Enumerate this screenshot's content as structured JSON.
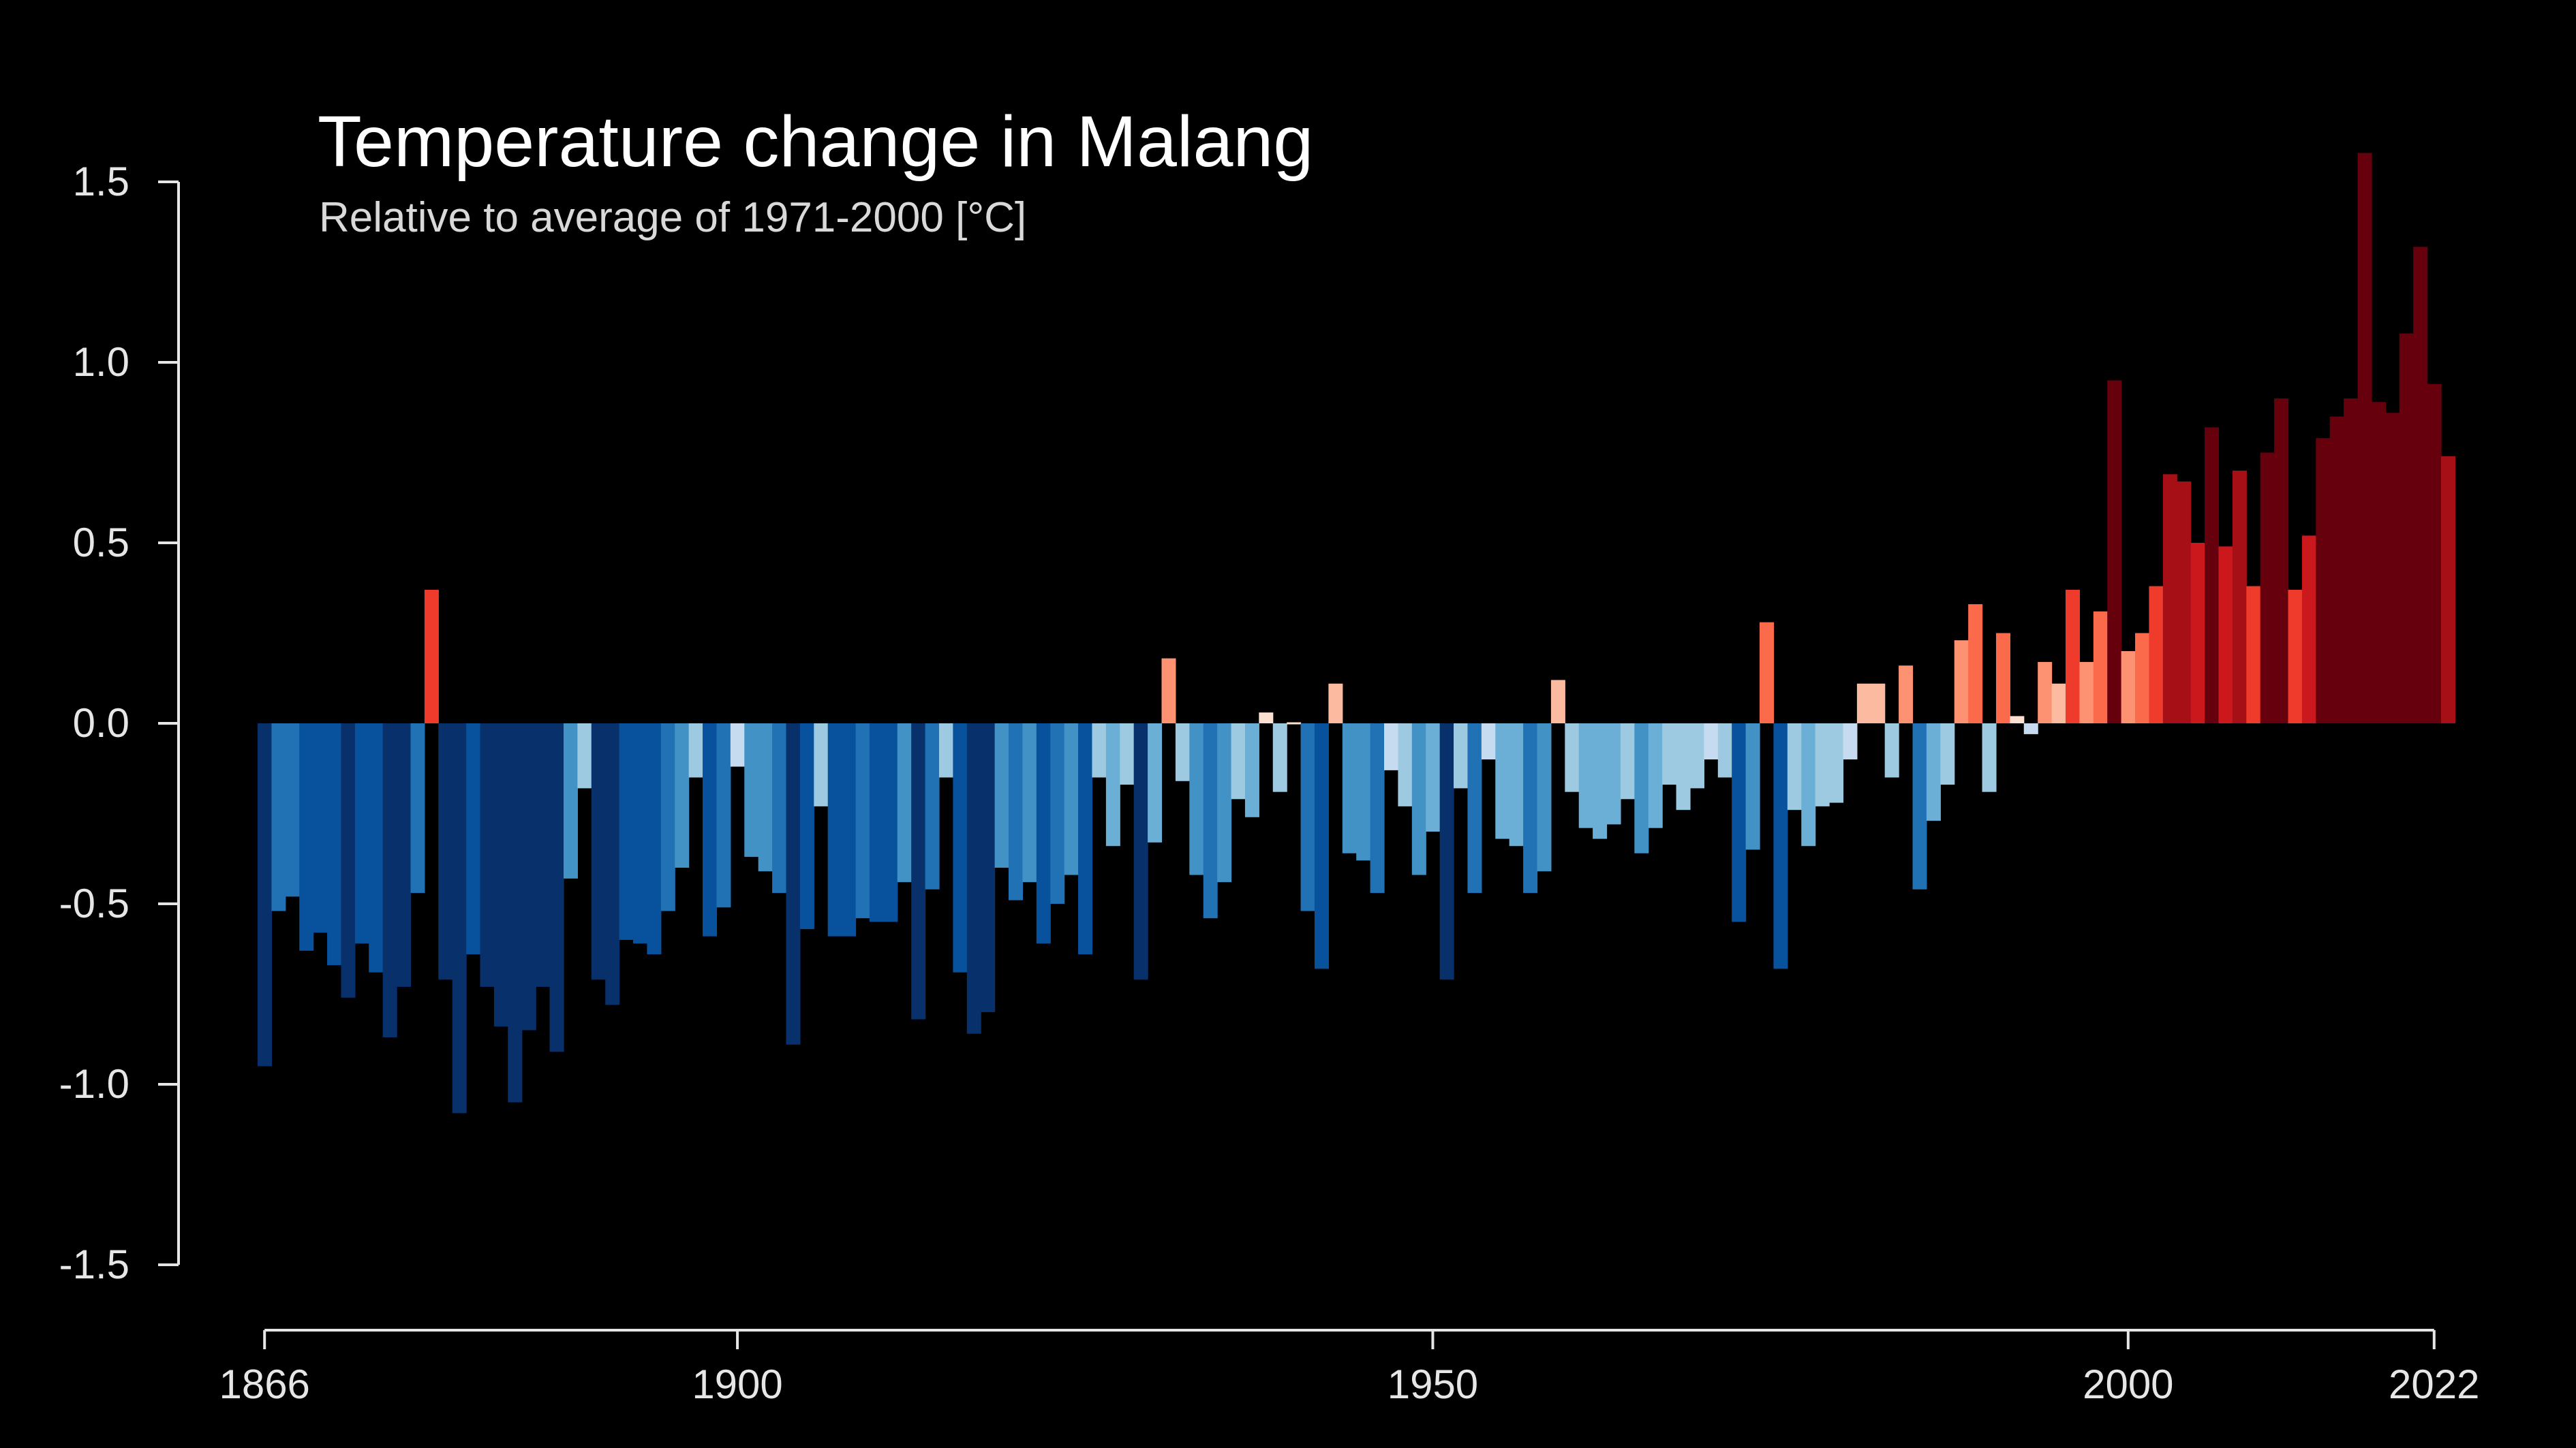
{
  "chart_data": {
    "type": "bar",
    "title": "Temperature change in Malang",
    "subtitle": "Relative to average of 1971-2000  [°C]",
    "xlabel": "",
    "ylabel": "",
    "xlim": [
      1866,
      2022
    ],
    "ylim": [
      -1.5,
      1.5
    ],
    "x_ticks": [
      "1866",
      "1900",
      "1950",
      "2000",
      "2022"
    ],
    "y_ticks": [
      "1.5",
      "1.0",
      "0.5",
      "0.0",
      "-0.5",
      "-1.0",
      "-1.5"
    ],
    "grid": false,
    "legend": "none",
    "color_scale": {
      "negative": [
        "#08306b",
        "#08519c",
        "#2171b5",
        "#4292c6",
        "#6baed6",
        "#9ecae1",
        "#c6dbef"
      ],
      "positive": [
        "#fee0d2",
        "#fcbba1",
        "#fc9272",
        "#fb6a4a",
        "#ef3b2c",
        "#cb181d",
        "#a50f15",
        "#67000d"
      ]
    },
    "series": [
      {
        "start_year": 1866,
        "values": [
          -0.95,
          -0.52,
          -0.48,
          -0.63,
          -0.58,
          -0.67,
          -0.76,
          -0.61,
          -0.69,
          -0.87,
          -0.73,
          -0.47,
          0.37,
          -0.71,
          -1.08,
          -0.64,
          -0.73,
          -0.84,
          -1.05,
          -0.85,
          -0.73,
          -0.91,
          -0.43,
          -0.18,
          -0.71,
          -0.78,
          -0.6,
          -0.61,
          -0.64,
          -0.52,
          -0.4,
          -0.15,
          -0.59,
          -0.51,
          -0.12,
          -0.37,
          -0.41,
          -0.47,
          -0.89,
          -0.57,
          -0.23,
          -0.59,
          -0.59,
          -0.54,
          -0.55,
          -0.55,
          -0.44,
          -0.82,
          -0.46,
          -0.15,
          -0.69,
          -0.86,
          -0.8,
          -0.4,
          -0.49,
          -0.44,
          -0.61,
          -0.5,
          -0.42,
          -0.64,
          -0.15,
          -0.34,
          -0.17,
          -0.71,
          -0.33,
          0.18,
          -0.16,
          -0.42,
          -0.54,
          -0.44,
          -0.21,
          -0.26,
          0.03,
          -0.19,
          0.0,
          -0.52,
          -0.68,
          0.11,
          -0.36,
          -0.38,
          -0.47,
          -0.13,
          -0.23,
          -0.42,
          -0.3,
          -0.71,
          -0.18,
          -0.47,
          -0.1,
          -0.32,
          -0.34,
          -0.47,
          -0.41,
          0.12,
          -0.19,
          -0.29,
          -0.32,
          -0.28,
          -0.21,
          -0.36,
          -0.29,
          -0.17,
          -0.24,
          -0.18,
          -0.1,
          -0.15,
          -0.55,
          -0.35,
          0.28,
          -0.68,
          -0.24,
          -0.34,
          -0.23,
          -0.22,
          -0.1,
          0.11,
          0.11,
          -0.15,
          0.16,
          -0.46,
          -0.27,
          -0.17,
          0.23,
          0.33,
          -0.19,
          0.25,
          0.02,
          -0.03,
          0.17,
          0.11,
          0.37,
          0.17,
          0.31,
          0.95,
          0.2,
          0.25,
          0.38,
          0.69,
          0.67,
          0.5,
          0.82,
          0.49,
          0.7,
          0.38,
          0.75,
          0.9,
          0.37,
          0.52,
          0.79,
          0.85,
          0.9,
          1.58,
          0.89,
          0.86,
          1.08,
          1.32,
          0.94,
          0.74
        ]
      }
    ]
  }
}
